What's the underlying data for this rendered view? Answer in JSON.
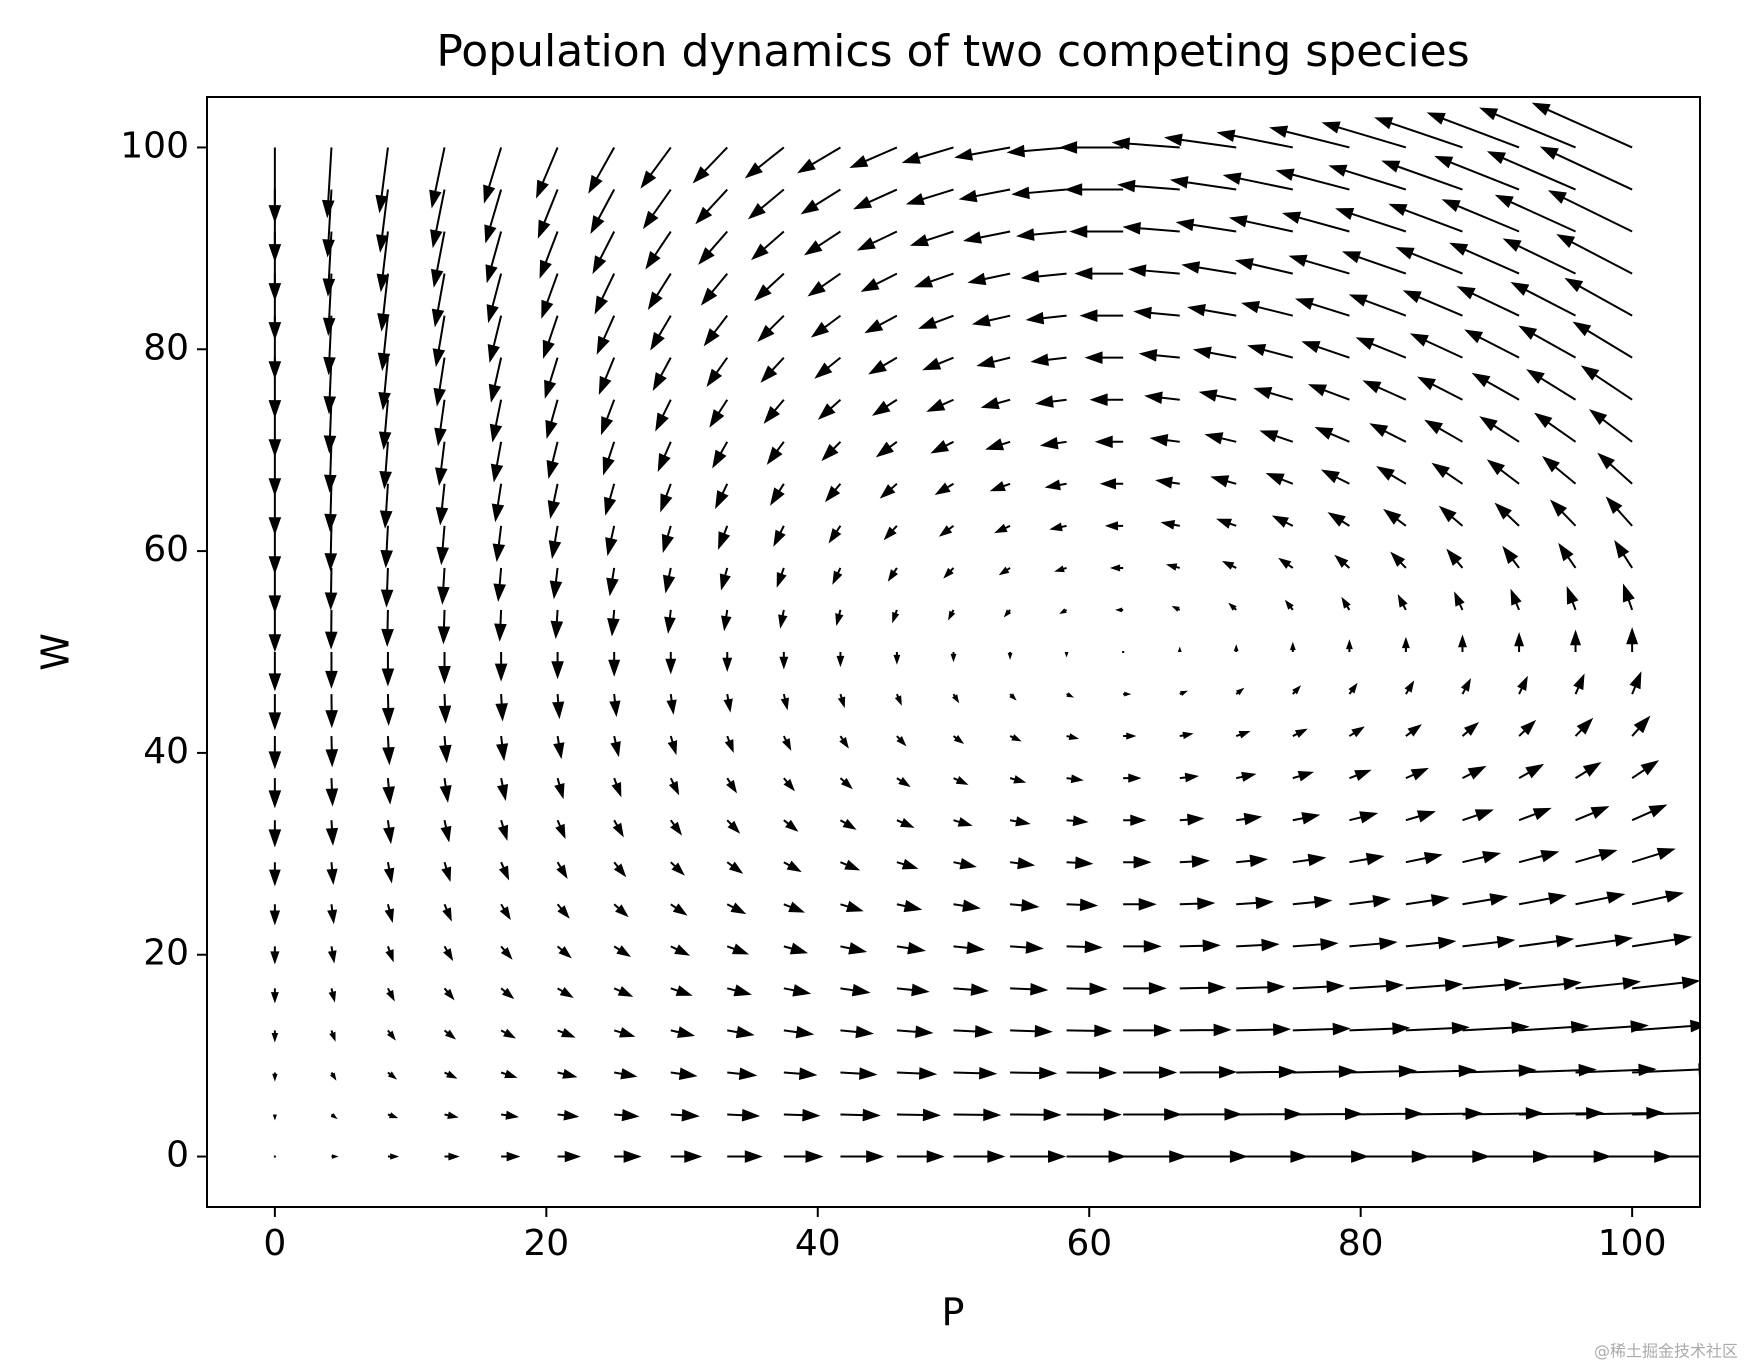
{
  "chart_data": {
    "type": "quiver",
    "title": "Population dynamics of two competing species",
    "xlabel": "P",
    "ylabel": "W",
    "watermark": "@稀土掘金技术社区",
    "color": "#000000",
    "xlim": [
      -5,
      105
    ],
    "ylim": [
      -5,
      105
    ],
    "xticks": [
      0,
      20,
      40,
      60,
      80,
      100
    ],
    "yticks": [
      0,
      20,
      40,
      60,
      80,
      100
    ],
    "grid": false,
    "x": [
      0,
      4.17,
      8.33,
      12.5,
      16.67,
      20.83,
      25,
      29.17,
      33.33,
      37.5,
      41.67,
      45.83,
      50,
      54.17,
      58.33,
      62.5,
      66.67,
      70.83,
      75,
      79.17,
      83.33,
      87.5,
      91.67,
      95.83,
      100
    ],
    "y": [
      0,
      4.17,
      8.33,
      12.5,
      16.67,
      20.83,
      25,
      29.17,
      33.33,
      37.5,
      41.67,
      45.83,
      50,
      54.17,
      58.33,
      62.5,
      66.67,
      70.83,
      75,
      79.17,
      83.33,
      87.5,
      91.67,
      95.83,
      100
    ],
    "u": [
      [
        0,
        0.3,
        0.6,
        0.9,
        1.2,
        1.5,
        1.8,
        2.1,
        2.4,
        2.7,
        3,
        3.3,
        3.6,
        3.9,
        4.2,
        4.5,
        4.8,
        5.1,
        5.4,
        5.7,
        6,
        6.3,
        6.6,
        6.9,
        7.2
      ],
      [
        0,
        0.275,
        0.55,
        0.825,
        1.1,
        1.375,
        1.65,
        1.925,
        2.2,
        2.475,
        2.75,
        3.025,
        3.3,
        3.575,
        3.85,
        4.125,
        4.4,
        4.675,
        4.95,
        5.225,
        5.5,
        5.775,
        6.05,
        6.325,
        6.6
      ],
      [
        0,
        0.25,
        0.5,
        0.75,
        1,
        1.25,
        1.5,
        1.75,
        2,
        2.25,
        2.5,
        2.75,
        3,
        3.25,
        3.5,
        3.75,
        4,
        4.25,
        4.5,
        4.75,
        5,
        5.25,
        5.5,
        5.75,
        6
      ],
      [
        0,
        0.225,
        0.45,
        0.675,
        0.9,
        1.125,
        1.35,
        1.575,
        1.8,
        2.025,
        2.25,
        2.475,
        2.7,
        2.925,
        3.15,
        3.375,
        3.6,
        3.825,
        4.05,
        4.275,
        4.5,
        4.725,
        4.95,
        5.175,
        5.4
      ],
      [
        0,
        0.2,
        0.4,
        0.6,
        0.8,
        1,
        1.2,
        1.4,
        1.6,
        1.8,
        2,
        2.2,
        2.4,
        2.6,
        2.8,
        3,
        3.2,
        3.4,
        3.6,
        3.8,
        4,
        4.2,
        4.4,
        4.6,
        4.8
      ],
      [
        0,
        0.175,
        0.35,
        0.525,
        0.7,
        0.875,
        1.05,
        1.225,
        1.4,
        1.575,
        1.75,
        1.925,
        2.1,
        2.275,
        2.45,
        2.625,
        2.8,
        2.975,
        3.15,
        3.325,
        3.5,
        3.675,
        3.85,
        4.025,
        4.2
      ],
      [
        0,
        0.15,
        0.3,
        0.45,
        0.6,
        0.75,
        0.9,
        1.05,
        1.2,
        1.35,
        1.5,
        1.65,
        1.8,
        1.95,
        2.1,
        2.25,
        2.4,
        2.55,
        2.7,
        2.85,
        3,
        3.15,
        3.3,
        3.45,
        3.6
      ],
      [
        0,
        0.125,
        0.25,
        0.375,
        0.5,
        0.625,
        0.75,
        0.875,
        1,
        1.125,
        1.25,
        1.375,
        1.5,
        1.625,
        1.75,
        1.875,
        2,
        2.125,
        2.25,
        2.375,
        2.5,
        2.625,
        2.75,
        2.875,
        3
      ],
      [
        0,
        0.1,
        0.2,
        0.3,
        0.4,
        0.5,
        0.6,
        0.7,
        0.8,
        0.9,
        1,
        1.1,
        1.2,
        1.3,
        1.4,
        1.5,
        1.6,
        1.7,
        1.8,
        1.9,
        2,
        2.1,
        2.2,
        2.3,
        2.4
      ],
      [
        0,
        0.075,
        0.15,
        0.225,
        0.3,
        0.375,
        0.45,
        0.525,
        0.6,
        0.675,
        0.75,
        0.825,
        0.9,
        0.975,
        1.05,
        1.125,
        1.2,
        1.275,
        1.35,
        1.425,
        1.5,
        1.575,
        1.65,
        1.725,
        1.8
      ],
      [
        0,
        0.05,
        0.1,
        0.15,
        0.2,
        0.25,
        0.3,
        0.35,
        0.4,
        0.45,
        0.5,
        0.55,
        0.6,
        0.65,
        0.7,
        0.75,
        0.8,
        0.85,
        0.9,
        0.95,
        1,
        1.05,
        1.1,
        1.15,
        1.2
      ],
      [
        0,
        0.025,
        0.05,
        0.075,
        0.1,
        0.125,
        0.15,
        0.175,
        0.2,
        0.225,
        0.25,
        0.275,
        0.3,
        0.325,
        0.35,
        0.375,
        0.4,
        0.425,
        0.45,
        0.475,
        0.5,
        0.525,
        0.55,
        0.575,
        0.6
      ],
      [
        0,
        0,
        0,
        0,
        0,
        0,
        0,
        0,
        0,
        0,
        0,
        0,
        0,
        0,
        0,
        0,
        0,
        0,
        0,
        0,
        0,
        0,
        0,
        0,
        0
      ],
      [
        0,
        -0.025,
        -0.05,
        -0.075,
        -0.1,
        -0.125,
        -0.15,
        -0.175,
        -0.2,
        -0.225,
        -0.25,
        -0.275,
        -0.3,
        -0.325,
        -0.35,
        -0.375,
        -0.4,
        -0.425,
        -0.45,
        -0.475,
        -0.5,
        -0.525,
        -0.55,
        -0.575,
        -0.6
      ],
      [
        0,
        -0.05,
        -0.1,
        -0.15,
        -0.2,
        -0.25,
        -0.3,
        -0.35,
        -0.4,
        -0.45,
        -0.5,
        -0.55,
        -0.6,
        -0.65,
        -0.7,
        -0.75,
        -0.8,
        -0.85,
        -0.9,
        -0.95,
        -1,
        -1.05,
        -1.1,
        -1.15,
        -1.2
      ],
      [
        0,
        -0.075,
        -0.15,
        -0.225,
        -0.3,
        -0.375,
        -0.45,
        -0.525,
        -0.6,
        -0.675,
        -0.75,
        -0.825,
        -0.9,
        -0.975,
        -1.05,
        -1.125,
        -1.2,
        -1.275,
        -1.35,
        -1.425,
        -1.5,
        -1.575,
        -1.65,
        -1.725,
        -1.8
      ],
      [
        0,
        -0.1,
        -0.2,
        -0.3,
        -0.4,
        -0.5,
        -0.6,
        -0.7,
        -0.8,
        -0.9,
        -1,
        -1.1,
        -1.2,
        -1.3,
        -1.4,
        -1.5,
        -1.6,
        -1.7,
        -1.8,
        -1.9,
        -2,
        -2.1,
        -2.2,
        -2.3,
        -2.4
      ],
      [
        0,
        -0.125,
        -0.25,
        -0.375,
        -0.5,
        -0.625,
        -0.75,
        -0.875,
        -1,
        -1.125,
        -1.25,
        -1.375,
        -1.5,
        -1.625,
        -1.75,
        -1.875,
        -2,
        -2.125,
        -2.25,
        -2.375,
        -2.5,
        -2.625,
        -2.75,
        -2.875,
        -3
      ],
      [
        0,
        -0.15,
        -0.3,
        -0.45,
        -0.6,
        -0.75,
        -0.9,
        -1.05,
        -1.2,
        -1.35,
        -1.5,
        -1.65,
        -1.8,
        -1.95,
        -2.1,
        -2.25,
        -2.4,
        -2.55,
        -2.7,
        -2.85,
        -3,
        -3.15,
        -3.3,
        -3.45,
        -3.6
      ],
      [
        0,
        -0.175,
        -0.35,
        -0.525,
        -0.7,
        -0.875,
        -1.05,
        -1.225,
        -1.4,
        -1.575,
        -1.75,
        -1.925,
        -2.1,
        -2.275,
        -2.45,
        -2.625,
        -2.8,
        -2.975,
        -3.15,
        -3.325,
        -3.5,
        -3.675,
        -3.85,
        -4.025,
        -4.2
      ],
      [
        0,
        -0.2,
        -0.4,
        -0.6,
        -0.8,
        -1,
        -1.2,
        -1.4,
        -1.6,
        -1.8,
        -2,
        -2.2,
        -2.4,
        -2.6,
        -2.8,
        -3,
        -3.2,
        -3.4,
        -3.6,
        -3.8,
        -4,
        -4.2,
        -4.4,
        -4.6,
        -4.8
      ],
      [
        0,
        -0.225,
        -0.45,
        -0.675,
        -0.9,
        -1.125,
        -1.35,
        -1.575,
        -1.8,
        -2.025,
        -2.25,
        -2.475,
        -2.7,
        -2.925,
        -3.15,
        -3.375,
        -3.6,
        -3.825,
        -4.05,
        -4.275,
        -4.5,
        -4.725,
        -4.95,
        -5.175,
        -5.4
      ],
      [
        0,
        -0.25,
        -0.5,
        -0.75,
        -1,
        -1.25,
        -1.5,
        -1.75,
        -2,
        -2.25,
        -2.5,
        -2.75,
        -3,
        -3.25,
        -3.5,
        -3.75,
        -4,
        -4.25,
        -4.5,
        -4.75,
        -5,
        -5.25,
        -5.5,
        -5.75,
        -6
      ],
      [
        0,
        -0.275,
        -0.55,
        -0.825,
        -1.1,
        -1.375,
        -1.65,
        -1.925,
        -2.2,
        -2.475,
        -2.75,
        -3.025,
        -3.3,
        -3.575,
        -3.85,
        -4.125,
        -4.4,
        -4.675,
        -4.95,
        -5.225,
        -5.5,
        -5.775,
        -6.05,
        -6.325,
        -6.6
      ],
      [
        0,
        -0.3,
        -0.6,
        -0.9,
        -1.2,
        -1.5,
        -1.8,
        -2.1,
        -2.4,
        -2.7,
        -3,
        -3.3,
        -3.6,
        -3.9,
        -4.2,
        -4.5,
        -4.8,
        -5.1,
        -5.4,
        -5.7,
        -6,
        -6.3,
        -6.6,
        -6.9,
        -7.2
      ]
    ],
    "v": [
      [
        0,
        0,
        0,
        0,
        0,
        0,
        0,
        0,
        0,
        0,
        0,
        0,
        0,
        0,
        0,
        0,
        0,
        0,
        0,
        0,
        0,
        0,
        0,
        0,
        0
      ],
      [
        -0.3,
        -0.28,
        -0.26,
        -0.24,
        -0.22,
        -0.2,
        -0.18,
        -0.16,
        -0.14,
        -0.12,
        -0.1,
        -0.08,
        -0.06,
        -0.04,
        -0.02,
        0,
        0.02,
        0.04,
        0.06,
        0.08,
        0.1,
        0.12,
        0.14,
        0.16,
        0.18
      ],
      [
        -0.6,
        -0.56,
        -0.52,
        -0.48,
        -0.44,
        -0.4,
        -0.36,
        -0.32,
        -0.28,
        -0.24,
        -0.2,
        -0.16,
        -0.12,
        -0.08,
        -0.04,
        0,
        0.04,
        0.08,
        0.12,
        0.16,
        0.2,
        0.24,
        0.28,
        0.32,
        0.36
      ],
      [
        -0.9,
        -0.84,
        -0.78,
        -0.72,
        -0.66,
        -0.6,
        -0.54,
        -0.48,
        -0.42,
        -0.36,
        -0.3,
        -0.24,
        -0.18,
        -0.12,
        -0.06,
        0,
        0.06,
        0.12,
        0.18,
        0.24,
        0.3,
        0.36,
        0.42,
        0.48,
        0.54
      ],
      [
        -1.2,
        -1.12,
        -1.04,
        -0.96,
        -0.88,
        -0.8,
        -0.72,
        -0.64,
        -0.56,
        -0.48,
        -0.4,
        -0.32,
        -0.24,
        -0.16,
        -0.08,
        0,
        0.08,
        0.16,
        0.24,
        0.32,
        0.4,
        0.48,
        0.56,
        0.64,
        0.72
      ],
      [
        -1.5,
        -1.4,
        -1.3,
        -1.2,
        -1.1,
        -1,
        -0.9,
        -0.8,
        -0.7,
        -0.6,
        -0.5,
        -0.4,
        -0.3,
        -0.2,
        -0.1,
        0,
        0.1,
        0.2,
        0.3,
        0.4,
        0.5,
        0.6,
        0.7,
        0.8,
        0.9
      ],
      [
        -1.8,
        -1.68,
        -1.56,
        -1.44,
        -1.32,
        -1.2,
        -1.08,
        -0.96,
        -0.84,
        -0.72,
        -0.6,
        -0.48,
        -0.36,
        -0.24,
        -0.12,
        0,
        0.12,
        0.24,
        0.36,
        0.48,
        0.6,
        0.72,
        0.84,
        0.96,
        1.08
      ],
      [
        -2.1,
        -1.96,
        -1.82,
        -1.68,
        -1.54,
        -1.4,
        -1.26,
        -1.12,
        -0.98,
        -0.84,
        -0.7,
        -0.56,
        -0.42,
        -0.28,
        -0.14,
        0,
        0.14,
        0.28,
        0.42,
        0.56,
        0.7,
        0.84,
        0.98,
        1.12,
        1.26
      ],
      [
        -2.4,
        -2.24,
        -2.08,
        -1.92,
        -1.76,
        -1.6,
        -1.44,
        -1.28,
        -1.12,
        -0.96,
        -0.8,
        -0.64,
        -0.48,
        -0.32,
        -0.16,
        0,
        0.16,
        0.32,
        0.48,
        0.64,
        0.8,
        0.96,
        1.12,
        1.28,
        1.44
      ],
      [
        -2.7,
        -2.52,
        -2.34,
        -2.16,
        -1.98,
        -1.8,
        -1.62,
        -1.44,
        -1.26,
        -1.08,
        -0.9,
        -0.72,
        -0.54,
        -0.36,
        -0.18,
        0,
        0.18,
        0.36,
        0.54,
        0.72,
        0.9,
        1.08,
        1.26,
        1.44,
        1.62
      ],
      [
        -3,
        -2.8,
        -2.6,
        -2.4,
        -2.2,
        -2,
        -1.8,
        -1.6,
        -1.4,
        -1.2,
        -1,
        -0.8,
        -0.6,
        -0.4,
        -0.2,
        0,
        0.2,
        0.4,
        0.6,
        0.8,
        1,
        1.2,
        1.4,
        1.6,
        1.8
      ],
      [
        -3.3,
        -3.08,
        -2.86,
        -2.64,
        -2.42,
        -2.2,
        -1.98,
        -1.76,
        -1.54,
        -1.32,
        -1.1,
        -0.88,
        -0.66,
        -0.44,
        -0.22,
        0,
        0.22,
        0.44,
        0.66,
        0.88,
        1.1,
        1.32,
        1.54,
        1.76,
        1.98
      ],
      [
        -3.6,
        -3.36,
        -3.12,
        -2.88,
        -2.64,
        -2.4,
        -2.16,
        -1.92,
        -1.68,
        -1.44,
        -1.2,
        -0.96,
        -0.72,
        -0.48,
        -0.24,
        0,
        0.24,
        0.48,
        0.72,
        0.96,
        1.2,
        1.44,
        1.68,
        1.92,
        2.16
      ],
      [
        -3.9,
        -3.64,
        -3.38,
        -3.12,
        -2.86,
        -2.6,
        -2.34,
        -2.08,
        -1.82,
        -1.56,
        -1.3,
        -1.04,
        -0.78,
        -0.52,
        -0.26,
        0,
        0.26,
        0.52,
        0.78,
        1.04,
        1.3,
        1.56,
        1.82,
        2.08,
        2.34
      ],
      [
        -4.2,
        -3.92,
        -3.64,
        -3.36,
        -3.08,
        -2.8,
        -2.52,
        -2.24,
        -1.96,
        -1.68,
        -1.4,
        -1.12,
        -0.84,
        -0.56,
        -0.28,
        0,
        0.28,
        0.56,
        0.84,
        1.12,
        1.4,
        1.68,
        1.96,
        2.24,
        2.52
      ],
      [
        -4.5,
        -4.2,
        -3.9,
        -3.6,
        -3.3,
        -3,
        -2.7,
        -2.4,
        -2.1,
        -1.8,
        -1.5,
        -1.2,
        -0.9,
        -0.6,
        -0.3,
        0,
        0.3,
        0.6,
        0.9,
        1.2,
        1.5,
        1.8,
        2.1,
        2.4,
        2.7
      ],
      [
        -4.8,
        -4.48,
        -4.16,
        -3.84,
        -3.52,
        -3.2,
        -2.88,
        -2.56,
        -2.24,
        -1.92,
        -1.6,
        -1.28,
        -0.96,
        -0.64,
        -0.32,
        0,
        0.32,
        0.64,
        0.96,
        1.28,
        1.6,
        1.92,
        2.24,
        2.56,
        2.88
      ],
      [
        -5.1,
        -4.76,
        -4.42,
        -4.08,
        -3.74,
        -3.4,
        -3.06,
        -2.72,
        -2.38,
        -2.04,
        -1.7,
        -1.36,
        -1.02,
        -0.68,
        -0.34,
        0,
        0.34,
        0.68,
        1.02,
        1.36,
        1.7,
        2.04,
        2.38,
        2.72,
        3.06
      ],
      [
        -5.4,
        -5.04,
        -4.68,
        -4.32,
        -3.96,
        -3.6,
        -3.24,
        -2.88,
        -2.52,
        -2.16,
        -1.8,
        -1.44,
        -1.08,
        -0.72,
        -0.36,
        0,
        0.36,
        0.72,
        1.08,
        1.44,
        1.8,
        2.16,
        2.52,
        2.88,
        3.24
      ],
      [
        -5.7,
        -5.32,
        -4.94,
        -4.56,
        -4.18,
        -3.8,
        -3.42,
        -3.04,
        -2.66,
        -2.28,
        -1.9,
        -1.52,
        -1.14,
        -0.76,
        -0.38,
        0,
        0.38,
        0.76,
        1.14,
        1.52,
        1.9,
        2.28,
        2.66,
        3.04,
        3.42
      ],
      [
        -6,
        -5.6,
        -5.2,
        -4.8,
        -4.4,
        -4,
        -3.6,
        -3.2,
        -2.8,
        -2.4,
        -2,
        -1.6,
        -1.2,
        -0.8,
        -0.4,
        0,
        0.4,
        0.8,
        1.2,
        1.6,
        2,
        2.4,
        2.8,
        3.2,
        3.6
      ],
      [
        -6.3,
        -5.88,
        -5.46,
        -5.04,
        -4.62,
        -4.2,
        -3.78,
        -3.36,
        -2.94,
        -2.52,
        -2.1,
        -1.68,
        -1.26,
        -0.84,
        -0.42,
        0,
        0.42,
        0.84,
        1.26,
        1.68,
        2.1,
        2.52,
        2.94,
        3.36,
        3.78
      ],
      [
        -6.6,
        -6.16,
        -5.72,
        -5.28,
        -4.84,
        -4.4,
        -3.96,
        -3.52,
        -3.08,
        -2.64,
        -2.2,
        -1.76,
        -1.32,
        -0.88,
        -0.44,
        0,
        0.44,
        0.88,
        1.32,
        1.76,
        2.2,
        2.64,
        3.08,
        3.52,
        3.96
      ],
      [
        -6.9,
        -6.44,
        -5.98,
        -5.52,
        -5.06,
        -4.6,
        -4.14,
        -3.68,
        -3.22,
        -2.76,
        -2.3,
        -1.84,
        -1.38,
        -0.92,
        -0.46,
        0,
        0.46,
        0.92,
        1.38,
        1.84,
        2.3,
        2.76,
        3.22,
        3.68,
        4.14
      ],
      [
        -7.2,
        -6.72,
        -6.24,
        -5.76,
        -5.28,
        -4.8,
        -4.32,
        -3.84,
        -3.36,
        -2.88,
        -2.4,
        -1.92,
        -1.44,
        -0.96,
        -0.48,
        0,
        0.48,
        0.96,
        1.44,
        1.92,
        2.4,
        2.88,
        3.36,
        3.84,
        4.32
      ]
    ]
  }
}
